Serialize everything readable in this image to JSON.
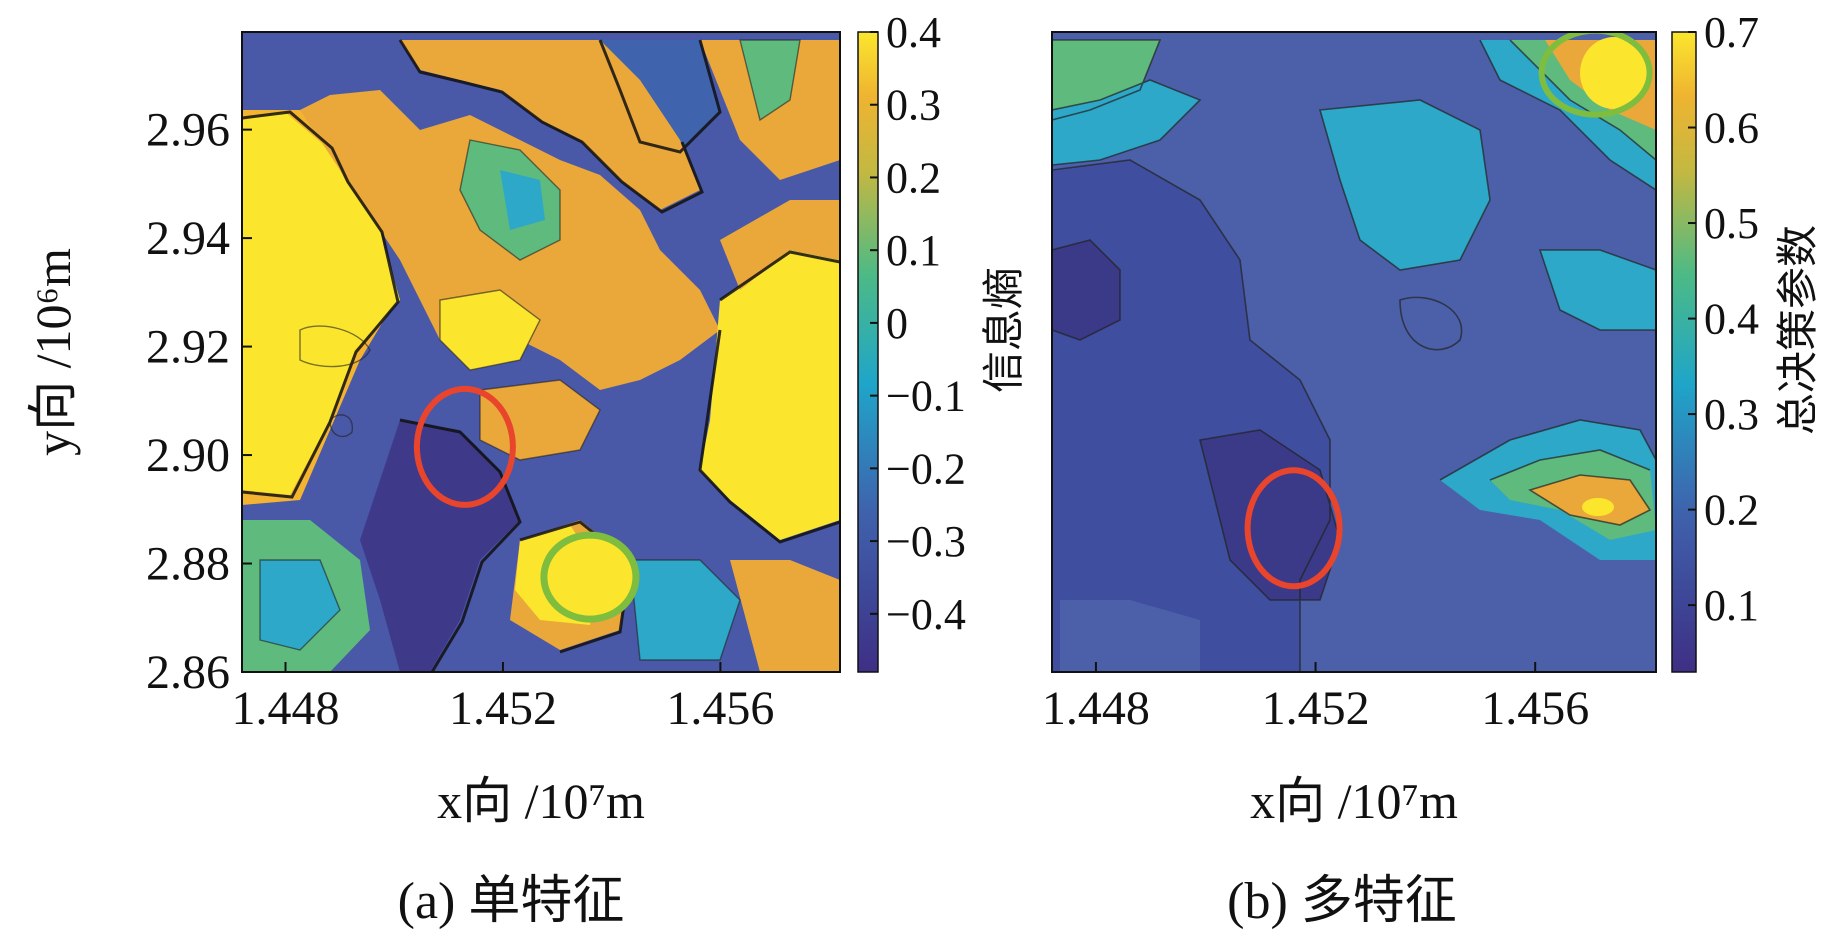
{
  "chart_data": [
    {
      "type": "heatmap",
      "panel_id": "a",
      "caption": "(a) 单特征",
      "xlabel": "x向 /10⁷m",
      "ylabel": "y向 /10⁶m",
      "x_ticks": [
        "1.448",
        "1.452",
        "1.456"
      ],
      "x_tick_values": [
        1.448,
        1.452,
        1.456
      ],
      "y_ticks": [
        "2.86",
        "2.88",
        "2.90",
        "2.92",
        "2.94",
        "2.96"
      ],
      "y_tick_values": [
        2.86,
        2.88,
        2.9,
        2.92,
        2.94,
        2.96
      ],
      "xlim": [
        1.4472,
        1.4582
      ],
      "ylim": [
        2.86,
        2.978
      ],
      "colorbar": {
        "label": "信息熵",
        "ticks": [
          "0.4",
          "0.3",
          "0.2",
          "0.1",
          "0",
          "−0.1",
          "−0.2",
          "−0.3",
          "−0.4"
        ],
        "tick_values": [
          0.4,
          0.3,
          0.2,
          0.1,
          0,
          -0.1,
          -0.2,
          -0.3,
          -0.4
        ],
        "range": [
          -0.48,
          0.4
        ]
      },
      "annotations": [
        {
          "shape": "ellipse",
          "color": "#e8452c",
          "x": 1.4513,
          "y": 2.9015,
          "description": "red ellipse"
        },
        {
          "shape": "ellipse",
          "color": "#7fbd3e",
          "x": 1.4536,
          "y": 2.8775,
          "description": "green ellipse"
        }
      ]
    },
    {
      "type": "heatmap",
      "panel_id": "b",
      "caption": "(b) 多特征",
      "xlabel": "x向 /10⁷m",
      "ylabel": "",
      "x_ticks": [
        "1.448",
        "1.452",
        "1.456"
      ],
      "x_tick_values": [
        1.448,
        1.452,
        1.456
      ],
      "xlim": [
        1.4472,
        1.4582
      ],
      "ylim": [
        2.86,
        2.978
      ],
      "colorbar": {
        "label": "总决策参数",
        "ticks": [
          "0.7",
          "0.6",
          "0.5",
          "0.4",
          "0.3",
          "0.2",
          "0.1"
        ],
        "tick_values": [
          0.7,
          0.6,
          0.5,
          0.4,
          0.3,
          0.2,
          0.1
        ],
        "range": [
          0.03,
          0.7
        ]
      },
      "annotations": [
        {
          "shape": "ellipse",
          "color": "#e8452c",
          "x": 1.4516,
          "y": 2.8865,
          "description": "red ellipse"
        },
        {
          "shape": "ellipse",
          "color": "#7fbd3e",
          "x": 1.4571,
          "y": 2.9705,
          "description": "green ellipse"
        }
      ]
    }
  ],
  "colors": {
    "viridis_dark": "#3e3a89",
    "blue": "#5a6fb6",
    "teal": "#2ea8c9",
    "green": "#5fba7d",
    "orange": "#e9a73a",
    "yellow": "#fbe62d",
    "red_marker": "#e8452c",
    "green_marker": "#7fbd3e"
  }
}
